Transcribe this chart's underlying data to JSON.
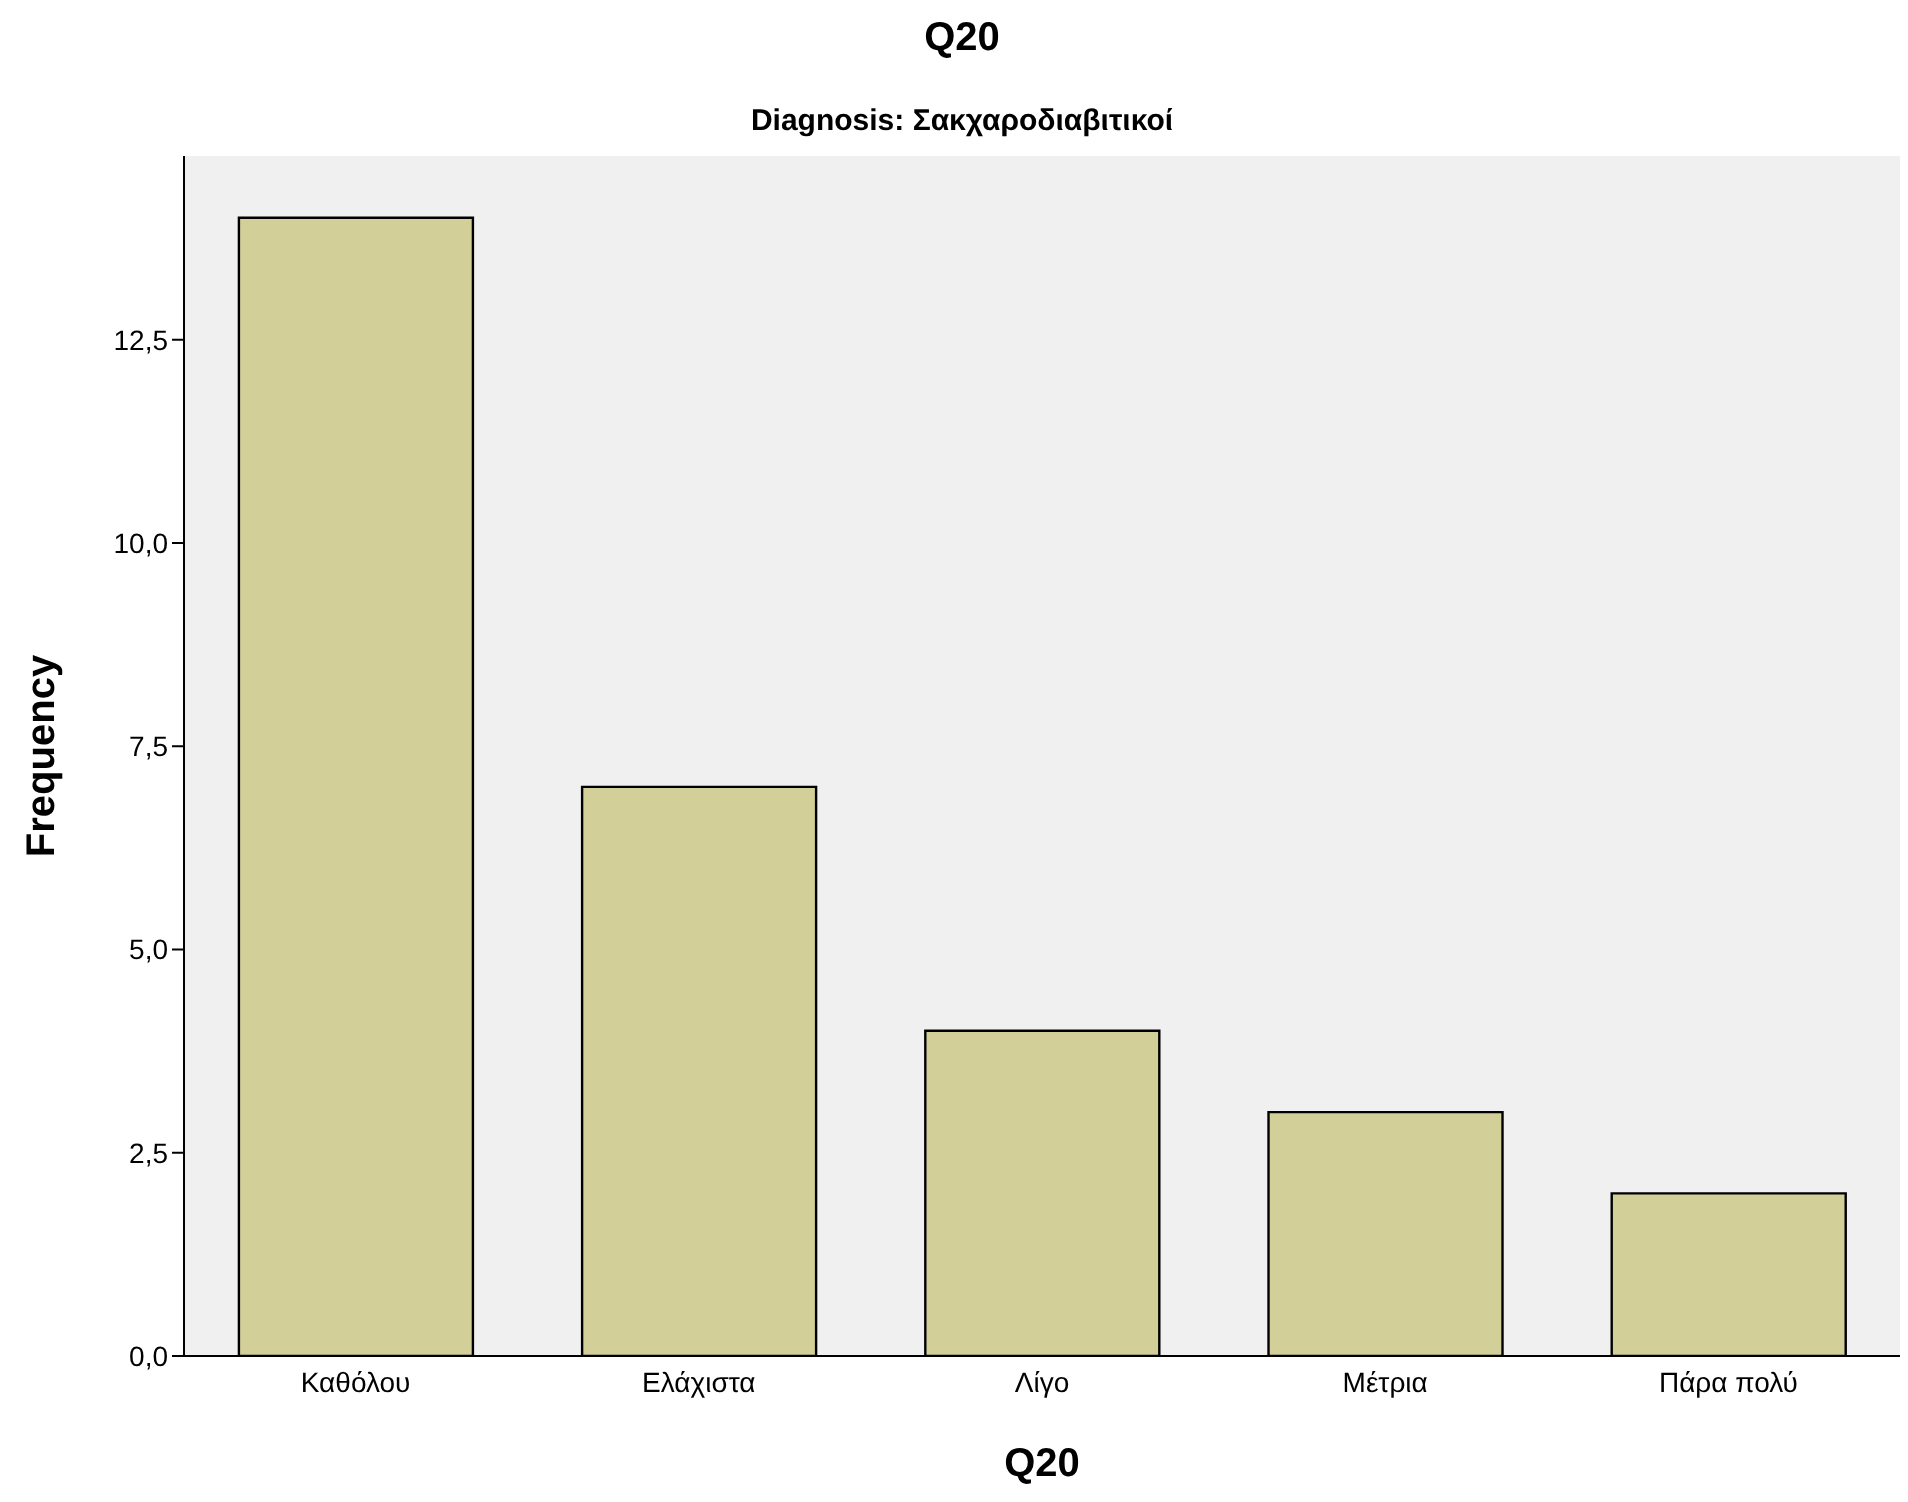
{
  "chart_data": {
    "type": "bar",
    "title": "Q20",
    "subtitle": "Diagnosis: Σακχαροδιαβιτικοί",
    "xlabel": "Q20",
    "ylabel": "Frequency",
    "categories": [
      "Καθόλου",
      "Ελάχιστα",
      "Λίγο",
      "Μέτρια",
      "Πάρα πολύ"
    ],
    "values": [
      14,
      7,
      4,
      3,
      2
    ],
    "color": "#d3cf98",
    "ylim": [
      0,
      14.76
    ],
    "yticks": [
      {
        "value": 0,
        "label": "0,0"
      },
      {
        "value": 2.5,
        "label": "2,5"
      },
      {
        "value": 5,
        "label": "5,0"
      },
      {
        "value": 7.5,
        "label": "7,5"
      },
      {
        "value": 10,
        "label": "10,0"
      },
      {
        "value": 12.5,
        "label": "12,5"
      }
    ]
  }
}
